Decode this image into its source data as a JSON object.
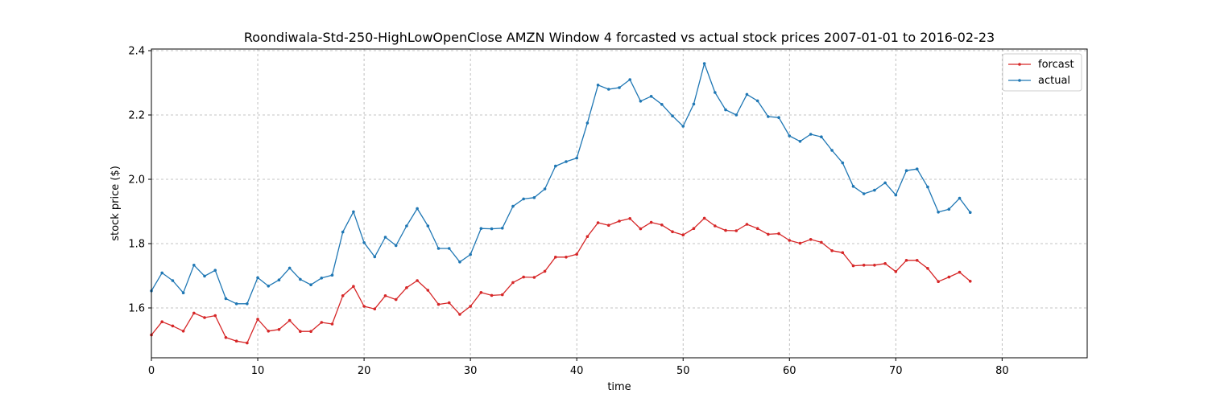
{
  "chart_data": {
    "type": "line",
    "title": "Roondiwala-Std-250-HighLowOpenClose AMZN Window 4 forcasted vs actual stock prices 2007-01-01 to 2016-02-23",
    "xlabel": "time",
    "ylabel": "stock price ($)",
    "xlim": [
      0,
      88
    ],
    "ylim": [
      1.445,
      2.405
    ],
    "xticks": [
      0,
      10,
      20,
      30,
      40,
      50,
      60,
      70,
      80
    ],
    "yticks": [
      1.6,
      1.8,
      2.0,
      2.2,
      2.4
    ],
    "xtick_labels": [
      "0",
      "10",
      "20",
      "30",
      "40",
      "50",
      "60",
      "70",
      "80"
    ],
    "ytick_labels": [
      "1.6",
      "1.8",
      "2.0",
      "2.2",
      "2.4"
    ],
    "grid": true,
    "legend_position": "top-right",
    "series": [
      {
        "name": "forcast",
        "color": "#d62728",
        "values": [
          1.516,
          1.557,
          1.544,
          1.528,
          1.584,
          1.57,
          1.576,
          1.508,
          1.497,
          1.491,
          1.565,
          1.528,
          1.533,
          1.561,
          1.527,
          1.527,
          1.555,
          1.55,
          1.638,
          1.667,
          1.605,
          1.597,
          1.638,
          1.626,
          1.663,
          1.685,
          1.655,
          1.611,
          1.616,
          1.58,
          1.605,
          1.648,
          1.639,
          1.641,
          1.679,
          1.696,
          1.695,
          1.714,
          1.758,
          1.758,
          1.767,
          1.822,
          1.865,
          1.857,
          1.87,
          1.878,
          1.846,
          1.866,
          1.858,
          1.837,
          1.827,
          1.847,
          1.879,
          1.855,
          1.841,
          1.84,
          1.86,
          1.847,
          1.829,
          1.831,
          1.81,
          1.801,
          1.813,
          1.804,
          1.778,
          1.772,
          1.731,
          1.733,
          1.733,
          1.738,
          1.713,
          1.748,
          1.748,
          1.723,
          1.682,
          1.696,
          1.711,
          1.683
        ]
      },
      {
        "name": "actual",
        "color": "#1f77b4",
        "values": [
          1.653,
          1.709,
          1.685,
          1.647,
          1.733,
          1.699,
          1.717,
          1.629,
          1.613,
          1.613,
          1.694,
          1.668,
          1.687,
          1.724,
          1.689,
          1.672,
          1.693,
          1.702,
          1.836,
          1.899,
          1.803,
          1.759,
          1.82,
          1.794,
          1.855,
          1.909,
          1.855,
          1.785,
          1.785,
          1.743,
          1.766,
          1.847,
          1.846,
          1.848,
          1.916,
          1.939,
          1.943,
          1.97,
          2.041,
          2.055,
          2.066,
          2.175,
          2.293,
          2.28,
          2.285,
          2.31,
          2.243,
          2.258,
          2.233,
          2.197,
          2.165,
          2.234,
          2.36,
          2.27,
          2.216,
          2.2,
          2.264,
          2.244,
          2.195,
          2.192,
          2.135,
          2.118,
          2.14,
          2.132,
          2.09,
          2.051,
          1.978,
          1.955,
          1.966,
          1.989,
          1.951,
          2.027,
          2.032,
          1.976,
          1.898,
          1.907,
          1.941,
          1.897
        ]
      }
    ]
  }
}
